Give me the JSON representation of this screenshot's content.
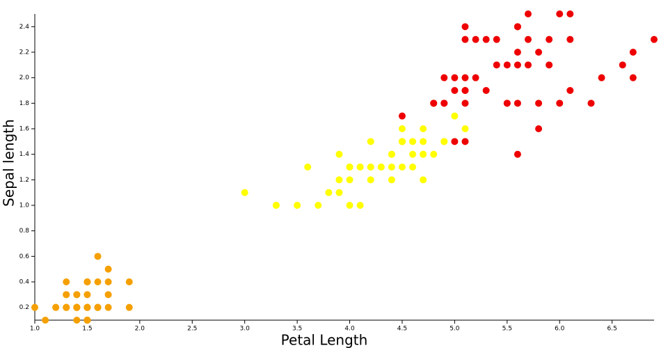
{
  "chart_data": {
    "type": "scatter",
    "x_label": "Petal Length",
    "y_label": "Sepal length",
    "xlim": [
      1.0,
      6.9
    ],
    "ylim": [
      0.1,
      2.5
    ],
    "xticks": [
      {
        "value": 1.0,
        "label": "1.0"
      },
      1.5,
      {
        "value": 2.0,
        "label": "2.0"
      },
      2.5,
      {
        "value": 3.0,
        "label": "3.0"
      },
      3.5,
      {
        "value": 4.0,
        "label": "4.0"
      },
      4.5,
      {
        "value": 5.0,
        "label": "5.0"
      },
      5.5,
      {
        "value": 6.0,
        "label": "6.0"
      },
      6.5
    ],
    "yticks": [
      0.2,
      0.4,
      0.6,
      0.8,
      {
        "value": 1.0,
        "label": "1.0"
      },
      1.2,
      1.4,
      1.6,
      1.8,
      {
        "value": 2.0,
        "label": "2.0"
      },
      2.2,
      2.4
    ],
    "series": [
      {
        "color": "#f5a000",
        "x": [
          1.4,
          1.4,
          1.3,
          1.5,
          1.4,
          1.7,
          1.4,
          1.5,
          1.4,
          1.5,
          1.5,
          1.6,
          1.4,
          1.1,
          1.2,
          1.5,
          1.3,
          1.4,
          1.7,
          1.5,
          1.7,
          1.5,
          1.0,
          1.7,
          1.9,
          1.6,
          1.6,
          1.5,
          1.4,
          1.6,
          1.6,
          1.5,
          1.5,
          1.4,
          1.5,
          1.2,
          1.3,
          1.5,
          1.3,
          1.5,
          1.3,
          1.3,
          1.3,
          1.6,
          1.9,
          1.6,
          1.4,
          1.5,
          1.4,
          1.5
        ],
        "y": [
          0.2,
          0.2,
          0.2,
          0.2,
          0.2,
          0.4,
          0.3,
          0.2,
          0.2,
          0.1,
          0.2,
          0.2,
          0.1,
          0.1,
          0.2,
          0.4,
          0.4,
          0.3,
          0.3,
          0.3,
          0.2,
          0.4,
          0.2,
          0.5,
          0.2,
          0.2,
          0.4,
          0.2,
          0.2,
          0.2,
          0.2,
          0.4,
          0.1,
          0.2,
          0.1,
          0.2,
          0.2,
          0.1,
          0.2,
          0.2,
          0.3,
          0.3,
          0.2,
          0.6,
          0.4,
          0.2,
          0.2,
          0.2,
          0.2,
          0.1
        ]
      },
      {
        "color": "#ffff00",
        "x": [
          4.7,
          4.5,
          4.9,
          4.0,
          4.6,
          4.5,
          4.7,
          3.3,
          4.6,
          3.9,
          3.5,
          4.2,
          4.0,
          4.7,
          3.6,
          4.4,
          4.5,
          4.1,
          4.5,
          3.9,
          4.8,
          4.0,
          4.9,
          4.7,
          4.3,
          4.4,
          4.8,
          5.0,
          4.5,
          3.5,
          3.8,
          3.7,
          3.9,
          5.1,
          4.5,
          4.5,
          4.7,
          4.4,
          4.1,
          4.0,
          4.4,
          4.6,
          4.0,
          3.3,
          4.2,
          4.2,
          4.2,
          4.3,
          3.0,
          4.1
        ],
        "y": [
          1.4,
          1.5,
          1.5,
          1.3,
          1.5,
          1.3,
          1.6,
          1.0,
          1.3,
          1.4,
          1.0,
          1.5,
          1.0,
          1.4,
          1.3,
          1.4,
          1.5,
          1.0,
          1.5,
          1.1,
          1.8,
          1.3,
          1.5,
          1.2,
          1.3,
          1.4,
          1.4,
          1.7,
          1.5,
          1.0,
          1.1,
          1.0,
          1.2,
          1.6,
          1.5,
          1.6,
          1.5,
          1.3,
          1.3,
          1.3,
          1.2,
          1.4,
          1.2,
          1.0,
          1.3,
          1.2,
          1.3,
          1.3,
          1.1,
          1.3
        ]
      },
      {
        "color": "#ee0000",
        "x": [
          6.0,
          5.1,
          5.9,
          5.6,
          5.8,
          6.6,
          4.5,
          6.3,
          5.8,
          6.1,
          5.1,
          5.3,
          5.5,
          5.0,
          5.1,
          5.3,
          5.5,
          6.7,
          6.9,
          5.0,
          5.7,
          4.9,
          6.7,
          4.9,
          5.7,
          6.0,
          4.8,
          4.9,
          5.6,
          5.8,
          6.1,
          6.4,
          5.6,
          5.1,
          5.6,
          6.1,
          5.6,
          5.5,
          4.8,
          5.4,
          5.6,
          5.1,
          5.1,
          5.9,
          5.7,
          5.2,
          5.0,
          5.2,
          5.4,
          5.1
        ],
        "y": [
          2.5,
          1.9,
          2.1,
          1.8,
          2.2,
          2.1,
          1.7,
          1.8,
          1.8,
          2.5,
          2.0,
          1.9,
          2.1,
          2.0,
          2.4,
          2.3,
          1.8,
          2.2,
          2.3,
          1.5,
          2.3,
          2.0,
          2.0,
          1.8,
          2.1,
          1.8,
          1.8,
          1.8,
          2.1,
          1.6,
          1.9,
          2.0,
          2.2,
          1.5,
          1.4,
          2.3,
          2.4,
          1.8,
          1.8,
          2.1,
          2.4,
          2.3,
          1.9,
          2.3,
          2.5,
          2.3,
          1.9,
          2.0,
          2.3,
          1.8
        ]
      }
    ]
  }
}
